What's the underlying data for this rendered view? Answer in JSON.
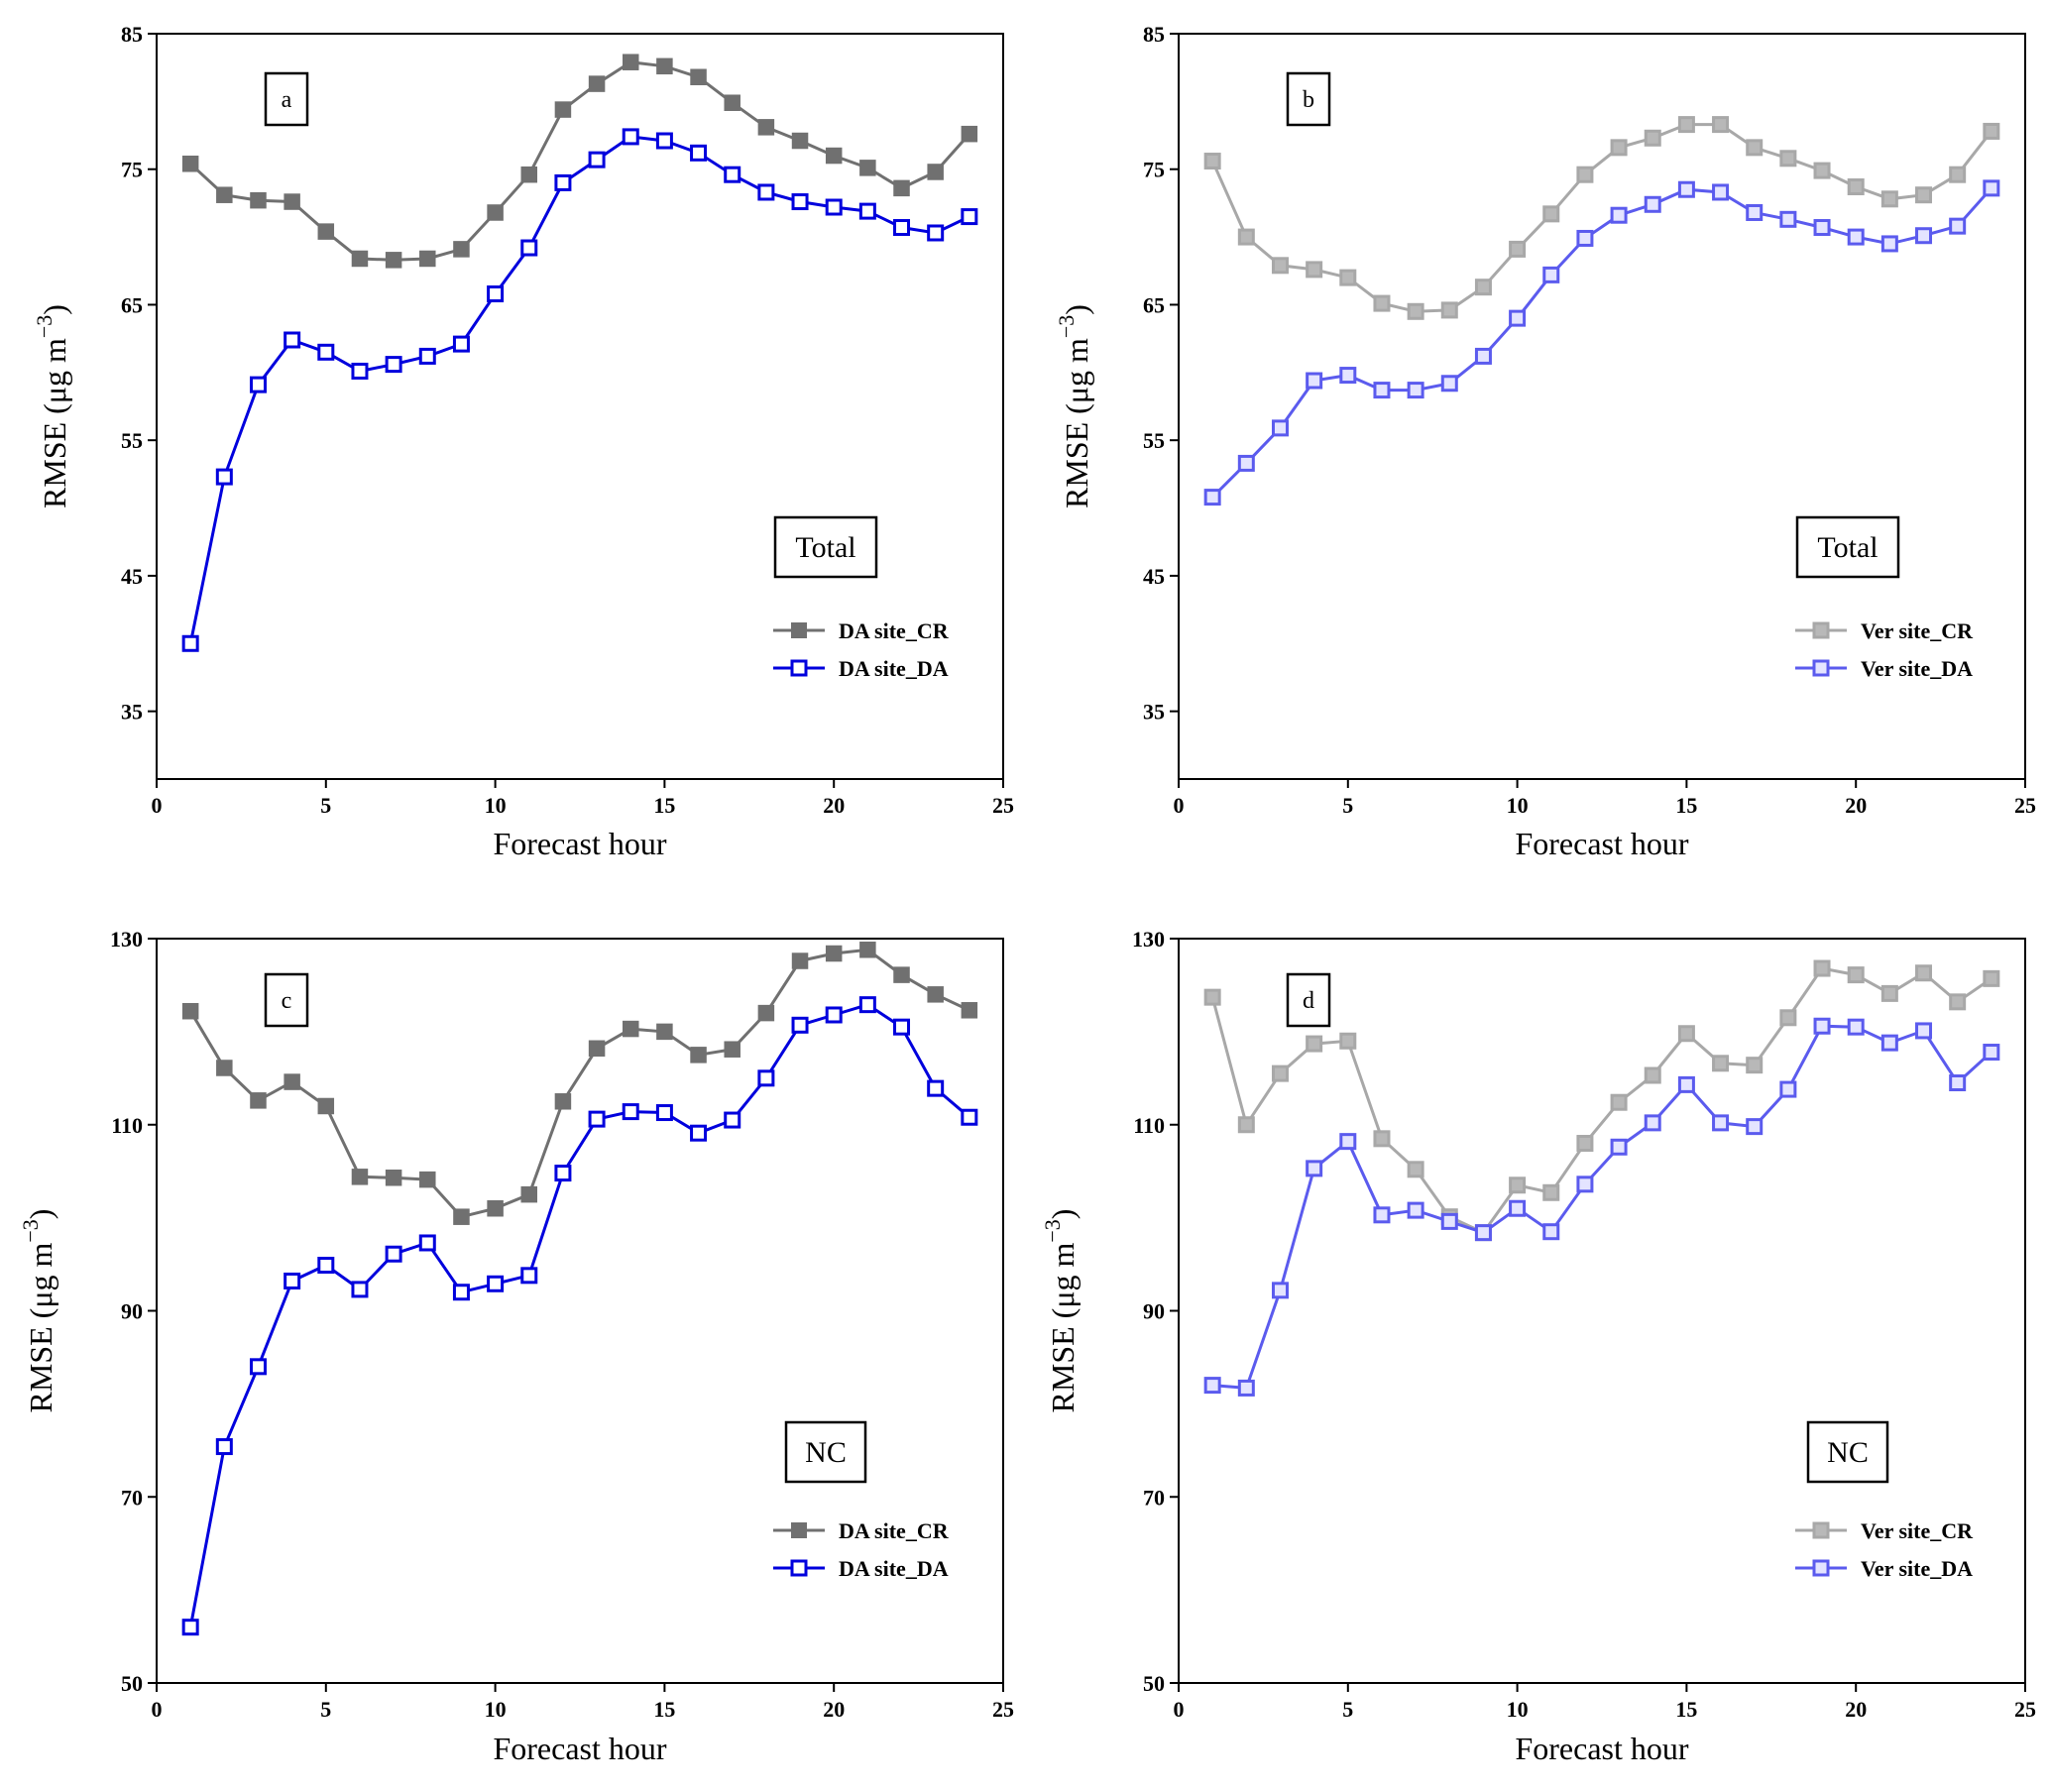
{
  "chart_data": [
    {
      "type": "line",
      "panel_label": "a",
      "region_label": "Total",
      "xlabel": "Forecast hour",
      "ylabel": "RMSE (μg m",
      "ylabel_sup": "−3",
      "ylabel_close": ")",
      "xlim": [
        0,
        25
      ],
      "ylim": [
        30,
        85
      ],
      "xticks": [
        0,
        5,
        10,
        15,
        20,
        25
      ],
      "yticks": [
        35,
        45,
        55,
        65,
        75,
        85
      ],
      "legend_position": "bottom-right",
      "grid": false,
      "x": [
        1,
        2,
        3,
        4,
        5,
        6,
        7,
        8,
        9,
        10,
        11,
        12,
        13,
        14,
        15,
        16,
        17,
        18,
        19,
        20,
        21,
        22,
        23,
        24
      ],
      "series": [
        {
          "name": "DA site_CR",
          "color": "#707070",
          "marker": "filled-square",
          "values": [
            75.4,
            73.1,
            72.7,
            72.6,
            70.4,
            68.4,
            68.3,
            68.4,
            69.1,
            71.8,
            74.6,
            79.4,
            81.3,
            82.9,
            82.6,
            81.8,
            79.9,
            78.1,
            77.1,
            76.0,
            75.1,
            73.6,
            74.8,
            77.6
          ]
        },
        {
          "name": "DA site_DA",
          "color": "#0000dd",
          "marker": "open-square",
          "values": [
            40.0,
            52.3,
            59.1,
            62.4,
            61.5,
            60.1,
            60.6,
            61.2,
            62.1,
            65.8,
            69.2,
            74.0,
            75.7,
            77.4,
            77.1,
            76.2,
            74.6,
            73.3,
            72.6,
            72.2,
            71.9,
            70.7,
            70.3,
            71.5
          ]
        }
      ]
    },
    {
      "type": "line",
      "panel_label": "b",
      "region_label": "Total",
      "xlabel": "Forecast hour",
      "ylabel": "RMSE (μg m",
      "ylabel_sup": "−3",
      "ylabel_close": ")",
      "xlim": [
        0,
        25
      ],
      "ylim": [
        30,
        85
      ],
      "xticks": [
        0,
        5,
        10,
        15,
        20,
        25
      ],
      "yticks": [
        35,
        45,
        55,
        65,
        75,
        85
      ],
      "legend_position": "bottom-right",
      "grid": false,
      "x": [
        1,
        2,
        3,
        4,
        5,
        6,
        7,
        8,
        9,
        10,
        11,
        12,
        13,
        14,
        15,
        16,
        17,
        18,
        19,
        20,
        21,
        22,
        23,
        24
      ],
      "series": [
        {
          "name": "Ver site_CR",
          "color": "#a8a8a8",
          "marker": "square-light",
          "values": [
            75.6,
            70.0,
            67.9,
            67.6,
            67.0,
            65.1,
            64.5,
            64.6,
            66.3,
            69.1,
            71.7,
            74.6,
            76.6,
            77.3,
            78.3,
            78.3,
            76.6,
            75.8,
            74.9,
            73.7,
            72.8,
            73.1,
            74.6,
            77.8
          ]
        },
        {
          "name": "Ver site_DA",
          "color": "#5b5bee",
          "marker": "square-light",
          "values": [
            50.8,
            53.3,
            55.9,
            59.4,
            59.8,
            58.7,
            58.7,
            59.2,
            61.2,
            64.0,
            67.2,
            69.9,
            71.6,
            72.4,
            73.5,
            73.3,
            71.8,
            71.3,
            70.7,
            70.0,
            69.5,
            70.1,
            70.8,
            73.6
          ]
        }
      ]
    },
    {
      "type": "line",
      "panel_label": "c",
      "region_label": "NC",
      "xlabel": "Forecast hour",
      "ylabel": "RMSE (μg m",
      "ylabel_sup": "−3",
      "ylabel_close": ")",
      "xlim": [
        0,
        25
      ],
      "ylim": [
        50,
        130
      ],
      "xticks": [
        0,
        5,
        10,
        15,
        20,
        25
      ],
      "yticks": [
        50,
        70,
        90,
        110,
        130
      ],
      "legend_position": "bottom-right",
      "grid": false,
      "x": [
        1,
        2,
        3,
        4,
        5,
        6,
        7,
        8,
        9,
        10,
        11,
        12,
        13,
        14,
        15,
        16,
        17,
        18,
        19,
        20,
        21,
        22,
        23,
        24
      ],
      "series": [
        {
          "name": "DA site_CR",
          "color": "#707070",
          "marker": "filled-square",
          "values": [
            122.2,
            116.1,
            112.6,
            114.6,
            112.0,
            104.4,
            104.3,
            104.1,
            100.1,
            101.0,
            102.5,
            112.5,
            118.2,
            120.3,
            120.0,
            117.5,
            118.1,
            122.0,
            127.6,
            128.4,
            128.8,
            126.1,
            124.0,
            122.3
          ]
        },
        {
          "name": "DA site_DA",
          "color": "#0000dd",
          "marker": "open-square",
          "values": [
            56.0,
            75.4,
            84.0,
            93.2,
            94.9,
            92.3,
            96.1,
            97.3,
            92.0,
            92.9,
            93.8,
            104.8,
            110.6,
            111.4,
            111.3,
            109.1,
            110.5,
            115.0,
            120.7,
            121.8,
            122.9,
            120.5,
            113.9,
            110.8
          ]
        }
      ]
    },
    {
      "type": "line",
      "panel_label": "d",
      "region_label": "NC",
      "xlabel": "Forecast hour",
      "ylabel": "RMSE (μg m",
      "ylabel_sup": "−3",
      "ylabel_close": ")",
      "xlim": [
        0,
        25
      ],
      "ylim": [
        50,
        130
      ],
      "xticks": [
        0,
        5,
        10,
        15,
        20,
        25
      ],
      "yticks": [
        50,
        70,
        90,
        110,
        130
      ],
      "legend_position": "bottom-right",
      "grid": false,
      "x": [
        1,
        2,
        3,
        4,
        5,
        6,
        7,
        8,
        9,
        10,
        11,
        12,
        13,
        14,
        15,
        16,
        17,
        18,
        19,
        20,
        21,
        22,
        23,
        24
      ],
      "series": [
        {
          "name": "Ver site_CR",
          "color": "#a8a8a8",
          "marker": "square-light",
          "values": [
            123.7,
            110.0,
            115.5,
            118.7,
            119.0,
            108.5,
            105.2,
            100.1,
            98.4,
            103.5,
            102.7,
            108.0,
            112.4,
            115.3,
            119.8,
            116.6,
            116.4,
            121.5,
            126.8,
            126.1,
            124.1,
            126.3,
            123.2,
            125.7
          ]
        },
        {
          "name": "Ver site_DA",
          "color": "#5b5bee",
          "marker": "square-light",
          "values": [
            82.0,
            81.7,
            92.2,
            105.3,
            108.2,
            100.3,
            100.8,
            99.6,
            98.4,
            101.0,
            98.5,
            103.6,
            107.6,
            110.2,
            114.3,
            110.2,
            109.8,
            113.8,
            120.6,
            120.5,
            118.8,
            120.1,
            114.5,
            117.8
          ]
        }
      ]
    }
  ]
}
